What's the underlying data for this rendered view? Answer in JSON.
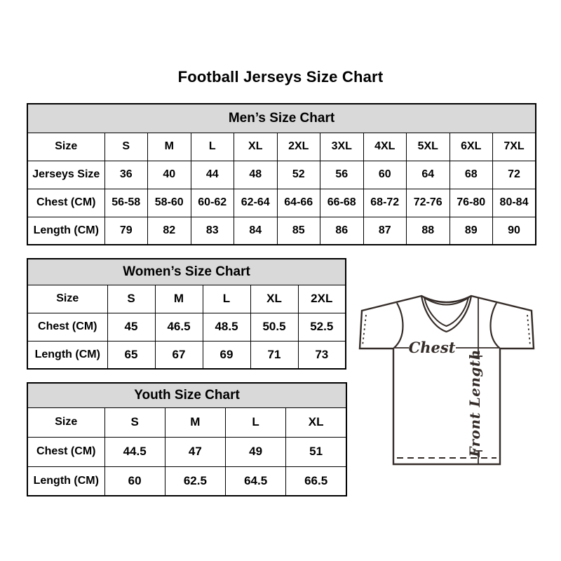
{
  "page": {
    "title": "Football Jerseys Size Chart"
  },
  "tables": {
    "mens": {
      "title": "Men’s Size Chart",
      "rows": [
        [
          "Size",
          "S",
          "M",
          "L",
          "XL",
          "2XL",
          "3XL",
          "4XL",
          "5XL",
          "6XL",
          "7XL"
        ],
        [
          "Jerseys Size",
          "36",
          "40",
          "44",
          "48",
          "52",
          "56",
          "60",
          "64",
          "68",
          "72"
        ],
        [
          "Chest (CM)",
          "56-58",
          "58-60",
          "60-62",
          "62-64",
          "64-66",
          "66-68",
          "68-72",
          "72-76",
          "76-80",
          "80-84"
        ],
        [
          "Length (CM)",
          "79",
          "82",
          "83",
          "84",
          "85",
          "86",
          "87",
          "88",
          "89",
          "90"
        ]
      ]
    },
    "womens": {
      "title": "Women’s Size Chart",
      "rows": [
        [
          "Size",
          "S",
          "M",
          "L",
          "XL",
          "2XL"
        ],
        [
          "Chest (CM)",
          "45",
          "46.5",
          "48.5",
          "50.5",
          "52.5"
        ],
        [
          "Length (CM)",
          "65",
          "67",
          "69",
          "71",
          "73"
        ]
      ]
    },
    "youth": {
      "title": "Youth Size Chart",
      "rows": [
        [
          "Size",
          "S",
          "M",
          "L",
          "XL"
        ],
        [
          "Chest (CM)",
          "44.5",
          "47",
          "49",
          "51"
        ],
        [
          "Length (CM)",
          "60",
          "62.5",
          "64.5",
          "66.5"
        ]
      ]
    }
  },
  "diagram": {
    "chest_label": "Chest",
    "front_length_label": "Front Length"
  },
  "colors": {
    "header_bg": "#d9d9d9",
    "table_border": "#000000",
    "jersey_line": "#342c28",
    "text": "#000000"
  }
}
